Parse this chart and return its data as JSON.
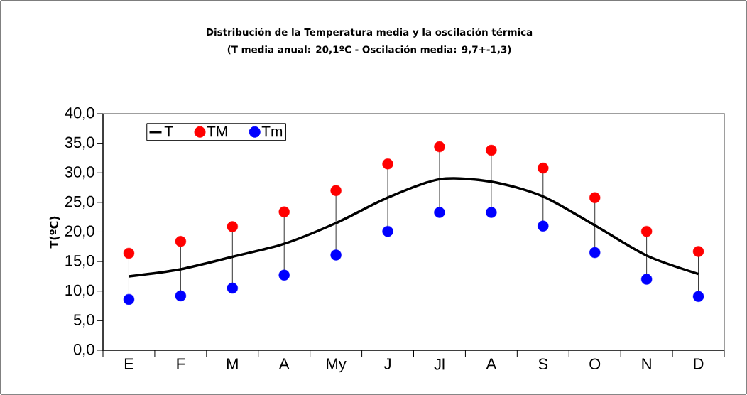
{
  "chart_data": {
    "type": "line",
    "title": "Distribución de la Temperatura media  y la oscilación térmica",
    "subtitle": "(T media anual: 20,1ºC -  Oscilación media: 9,7+-1,3)",
    "ylabel": "T(ºC)",
    "categories": [
      "E",
      "F",
      "M",
      "A",
      "My",
      "J",
      "Jl",
      "A",
      "S",
      "O",
      "N",
      "D"
    ],
    "series": [
      {
        "name": "T",
        "color": "#000000",
        "marker": "none",
        "values": [
          12.5,
          13.7,
          15.8,
          18.0,
          21.5,
          25.8,
          28.9,
          28.5,
          26.0,
          21.1,
          16.0,
          12.9
        ]
      },
      {
        "name": "TM",
        "type": "scatter",
        "color": "#ff0000",
        "marker": "circle",
        "values": [
          16.4,
          18.4,
          20.9,
          23.4,
          27.0,
          31.5,
          34.4,
          33.8,
          30.8,
          25.8,
          20.1,
          16.7
        ]
      },
      {
        "name": "Tm",
        "type": "scatter",
        "color": "#0000ff",
        "marker": "circle",
        "values": [
          8.6,
          9.2,
          10.5,
          12.7,
          16.1,
          20.1,
          23.3,
          23.3,
          21.0,
          16.5,
          12.0,
          9.1
        ]
      }
    ],
    "ylim": [
      0,
      40
    ],
    "yticks": [
      {
        "value": 0,
        "label": "0,0"
      },
      {
        "value": 5,
        "label": "5,0"
      },
      {
        "value": 10,
        "label": "10,0"
      },
      {
        "value": 15,
        "label": "15,0"
      },
      {
        "value": 20,
        "label": "20,0"
      },
      {
        "value": 25,
        "label": "25,0"
      },
      {
        "value": 30,
        "label": "30,0"
      },
      {
        "value": 35,
        "label": "35,0"
      },
      {
        "value": 40,
        "label": "40,0"
      }
    ],
    "grid": false,
    "legend": "top left"
  }
}
